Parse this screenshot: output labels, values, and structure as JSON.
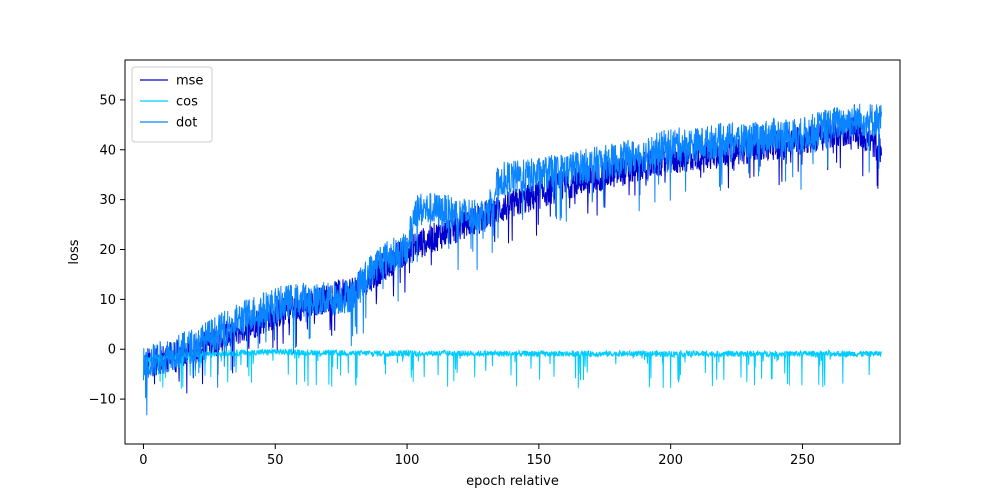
{
  "chart_data": {
    "type": "line",
    "title": "",
    "xlabel": "epoch relative",
    "ylabel": "loss",
    "xlim": [
      -7,
      287
    ],
    "ylim": [
      -19,
      58
    ],
    "xticks": [
      0,
      50,
      100,
      150,
      200,
      250
    ],
    "yticks": [
      -10,
      0,
      10,
      20,
      30,
      40,
      50
    ],
    "grid": false,
    "legend_position": "top-left",
    "series": [
      {
        "name": "mse",
        "color": "#0000cd",
        "points": [
          [
            0,
            -3
          ],
          [
            20,
            0
          ],
          [
            50,
            7
          ],
          [
            80,
            12
          ],
          [
            100,
            20
          ],
          [
            130,
            27
          ],
          [
            160,
            33
          ],
          [
            200,
            38
          ],
          [
            240,
            41
          ],
          [
            270,
            44
          ],
          [
            280,
            40
          ]
        ]
      },
      {
        "name": "cos",
        "color": "#00ccff",
        "points": [
          [
            0,
            -2
          ],
          [
            20,
            -1
          ],
          [
            50,
            -0.5
          ],
          [
            80,
            -0.8
          ],
          [
            110,
            -0.8
          ],
          [
            150,
            -0.9
          ],
          [
            200,
            -0.9
          ],
          [
            250,
            -0.9
          ],
          [
            280,
            -0.9
          ]
        ]
      },
      {
        "name": "dot",
        "color": "#0a84ff",
        "points": [
          [
            0,
            -3
          ],
          [
            10,
            -1
          ],
          [
            20,
            1
          ],
          [
            30,
            4
          ],
          [
            40,
            7
          ],
          [
            50,
            9
          ],
          [
            60,
            10
          ],
          [
            70,
            10
          ],
          [
            80,
            11
          ],
          [
            85,
            15
          ],
          [
            90,
            18
          ],
          [
            100,
            20
          ],
          [
            103,
            28
          ],
          [
            110,
            28
          ],
          [
            120,
            27
          ],
          [
            130,
            27
          ],
          [
            135,
            34
          ],
          [
            150,
            35
          ],
          [
            160,
            36
          ],
          [
            170,
            37
          ],
          [
            180,
            38
          ],
          [
            190,
            39
          ],
          [
            200,
            41
          ],
          [
            210,
            41
          ],
          [
            220,
            42
          ],
          [
            230,
            42
          ],
          [
            240,
            43
          ],
          [
            250,
            43
          ],
          [
            260,
            45
          ],
          [
            270,
            46
          ],
          [
            280,
            46
          ]
        ]
      }
    ]
  }
}
